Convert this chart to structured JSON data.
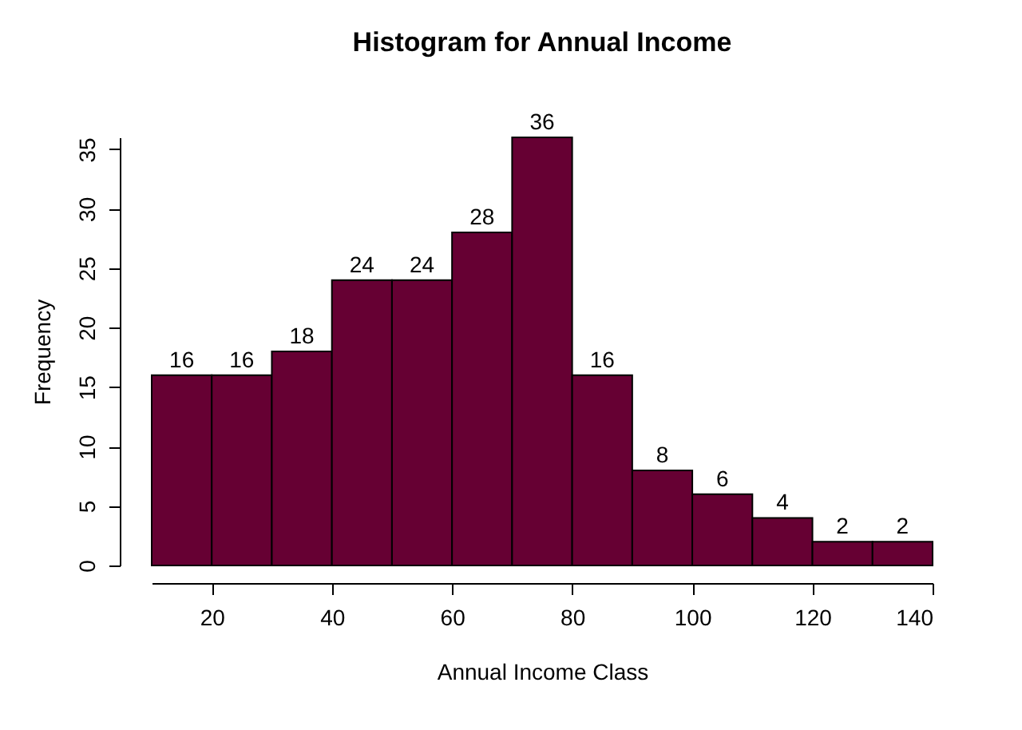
{
  "chart_data": {
    "type": "histogram",
    "title": "Histogram for Annual Income",
    "xlabel": "Annual Income Class",
    "ylabel": "Frequency",
    "bins": [
      10,
      20,
      30,
      40,
      50,
      60,
      70,
      80,
      90,
      100,
      110,
      120,
      130,
      140
    ],
    "values": [
      16,
      16,
      18,
      24,
      24,
      28,
      36,
      16,
      8,
      6,
      4,
      2,
      2
    ],
    "color": "#660033",
    "xlim": [
      10,
      140
    ],
    "ylim": [
      0,
      36
    ],
    "xticks": [
      20,
      40,
      60,
      80,
      100,
      120,
      140
    ],
    "yticks": [
      0,
      5,
      10,
      15,
      20,
      25,
      30,
      35
    ],
    "data_labels": true
  }
}
